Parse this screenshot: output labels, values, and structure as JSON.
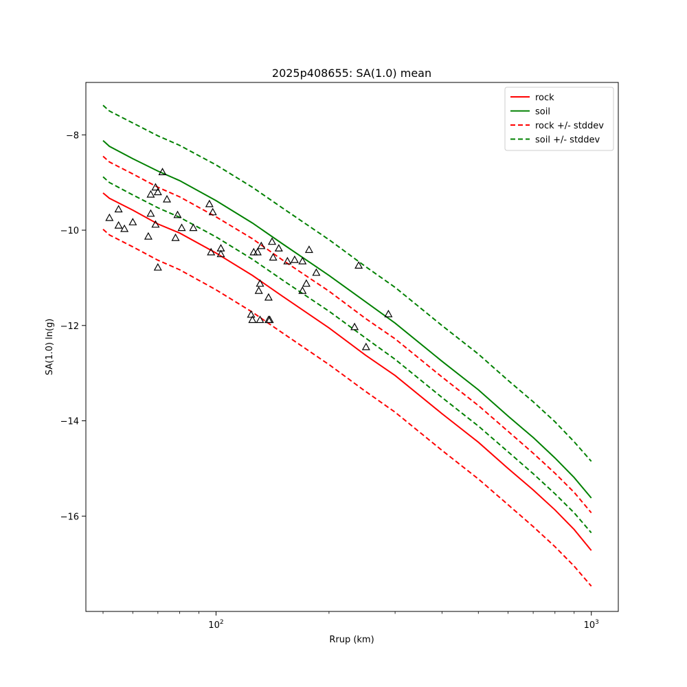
{
  "chart_data": {
    "type": "line",
    "title": "2025p408655: SA(1.0) mean",
    "xlabel": "Rrup (km)",
    "ylabel": "SA(1.0) ln(g)",
    "xscale": "log",
    "xlim": [
      45,
      1180
    ],
    "ylim": [
      -18.0,
      -6.9
    ],
    "xticks": [
      {
        "value": 100,
        "base": "10",
        "exp": "2"
      },
      {
        "value": 1000,
        "base": "10",
        "exp": "3"
      }
    ],
    "yticks": [
      -16,
      -14,
      -12,
      -10,
      -8
    ],
    "tick_labels": {
      "-16": "−16",
      "-14": "−14",
      "-12": "−12",
      "-10": "−10",
      "-8": "−8"
    },
    "legend": {
      "placement": "top-right"
    },
    "series": [
      {
        "name": "rock",
        "color": "#ff0000",
        "dash": "solid",
        "points": [
          [
            50,
            -9.22
          ],
          [
            52,
            -9.33
          ],
          [
            60,
            -9.58
          ],
          [
            70,
            -9.87
          ],
          [
            80,
            -10.06
          ],
          [
            100,
            -10.48
          ],
          [
            125,
            -10.95
          ],
          [
            150,
            -11.38
          ],
          [
            200,
            -12.05
          ],
          [
            250,
            -12.62
          ],
          [
            300,
            -13.05
          ],
          [
            400,
            -13.85
          ],
          [
            500,
            -14.45
          ],
          [
            600,
            -15.0
          ],
          [
            700,
            -15.45
          ],
          [
            800,
            -15.87
          ],
          [
            900,
            -16.28
          ],
          [
            1000,
            -16.72
          ]
        ]
      },
      {
        "name": "soil",
        "color": "#008000",
        "dash": "solid",
        "points": [
          [
            50,
            -8.12
          ],
          [
            52,
            -8.24
          ],
          [
            60,
            -8.5
          ],
          [
            70,
            -8.76
          ],
          [
            80,
            -8.96
          ],
          [
            100,
            -9.38
          ],
          [
            125,
            -9.85
          ],
          [
            150,
            -10.28
          ],
          [
            200,
            -10.95
          ],
          [
            250,
            -11.5
          ],
          [
            300,
            -11.95
          ],
          [
            400,
            -12.75
          ],
          [
            500,
            -13.35
          ],
          [
            600,
            -13.9
          ],
          [
            700,
            -14.35
          ],
          [
            800,
            -14.78
          ],
          [
            900,
            -15.19
          ],
          [
            1000,
            -15.62
          ]
        ]
      },
      {
        "name": "rock +/- stddev",
        "color": "#ff0000",
        "dash": "dashed",
        "points": [
          [
            50,
            -8.45
          ],
          [
            52,
            -8.57
          ],
          [
            60,
            -8.82
          ],
          [
            70,
            -9.1
          ],
          [
            80,
            -9.3
          ],
          [
            100,
            -9.72
          ],
          [
            125,
            -10.18
          ],
          [
            150,
            -10.62
          ],
          [
            200,
            -11.28
          ],
          [
            250,
            -11.85
          ],
          [
            300,
            -12.28
          ],
          [
            400,
            -13.08
          ],
          [
            500,
            -13.68
          ],
          [
            600,
            -14.22
          ],
          [
            700,
            -14.68
          ],
          [
            800,
            -15.1
          ],
          [
            900,
            -15.5
          ],
          [
            1000,
            -15.93
          ]
        ]
      },
      {
        "name": "",
        "color": "#ff0000",
        "dash": "dashed",
        "points": [
          [
            50,
            -9.98
          ],
          [
            52,
            -10.1
          ],
          [
            60,
            -10.35
          ],
          [
            70,
            -10.63
          ],
          [
            80,
            -10.83
          ],
          [
            100,
            -11.25
          ],
          [
            125,
            -11.72
          ],
          [
            150,
            -12.15
          ],
          [
            200,
            -12.82
          ],
          [
            250,
            -13.38
          ],
          [
            300,
            -13.82
          ],
          [
            400,
            -14.62
          ],
          [
            500,
            -15.22
          ],
          [
            600,
            -15.76
          ],
          [
            700,
            -16.22
          ],
          [
            800,
            -16.64
          ],
          [
            900,
            -17.05
          ],
          [
            1000,
            -17.47
          ]
        ]
      },
      {
        "name": "soil +/- stddev",
        "color": "#008000",
        "dash": "dashed",
        "points": [
          [
            50,
            -7.38
          ],
          [
            52,
            -7.5
          ],
          [
            60,
            -7.75
          ],
          [
            70,
            -8.02
          ],
          [
            80,
            -8.22
          ],
          [
            100,
            -8.63
          ],
          [
            125,
            -9.1
          ],
          [
            150,
            -9.53
          ],
          [
            200,
            -10.2
          ],
          [
            250,
            -10.76
          ],
          [
            300,
            -11.2
          ],
          [
            400,
            -12.0
          ],
          [
            500,
            -12.6
          ],
          [
            600,
            -13.15
          ],
          [
            700,
            -13.6
          ],
          [
            800,
            -14.02
          ],
          [
            900,
            -14.44
          ],
          [
            1000,
            -14.85
          ]
        ]
      },
      {
        "name": "",
        "color": "#008000",
        "dash": "dashed",
        "points": [
          [
            50,
            -8.88
          ],
          [
            52,
            -9.0
          ],
          [
            60,
            -9.26
          ],
          [
            70,
            -9.53
          ],
          [
            80,
            -9.73
          ],
          [
            100,
            -10.14
          ],
          [
            125,
            -10.61
          ],
          [
            150,
            -11.04
          ],
          [
            200,
            -11.7
          ],
          [
            250,
            -12.26
          ],
          [
            300,
            -12.71
          ],
          [
            400,
            -13.51
          ],
          [
            500,
            -14.11
          ],
          [
            600,
            -14.65
          ],
          [
            700,
            -15.11
          ],
          [
            800,
            -15.53
          ],
          [
            900,
            -15.93
          ],
          [
            1000,
            -16.35
          ]
        ]
      }
    ],
    "observations": {
      "marker": "triangle",
      "points": [
        [
          52,
          -9.74
        ],
        [
          55,
          -9.56
        ],
        [
          55,
          -9.9
        ],
        [
          57,
          -9.97
        ],
        [
          60,
          -9.83
        ],
        [
          66,
          -10.13
        ],
        [
          67,
          -9.25
        ],
        [
          67,
          -9.65
        ],
        [
          69,
          -9.1
        ],
        [
          70,
          -9.2
        ],
        [
          69,
          -9.88
        ],
        [
          70,
          -10.78
        ],
        [
          72,
          -8.78
        ],
        [
          74,
          -9.35
        ],
        [
          78,
          -10.16
        ],
        [
          79,
          -9.68
        ],
        [
          81,
          -9.95
        ],
        [
          87,
          -9.95
        ],
        [
          96,
          -9.45
        ],
        [
          97,
          -10.46
        ],
        [
          98,
          -9.62
        ],
        [
          103,
          -10.38
        ],
        [
          103,
          -10.5
        ],
        [
          124,
          -11.77
        ],
        [
          125,
          -11.88
        ],
        [
          126,
          -10.46
        ],
        [
          129,
          -10.46
        ],
        [
          130,
          -11.27
        ],
        [
          131,
          -11.12
        ],
        [
          131,
          -11.88
        ],
        [
          132,
          -10.33
        ],
        [
          138,
          -11.41
        ],
        [
          138,
          -11.88
        ],
        [
          139,
          -11.88
        ],
        [
          141,
          -10.24
        ],
        [
          142,
          -10.57
        ],
        [
          147,
          -10.38
        ],
        [
          155,
          -10.65
        ],
        [
          162,
          -10.62
        ],
        [
          170,
          -10.65
        ],
        [
          170,
          -11.27
        ],
        [
          174,
          -11.12
        ],
        [
          177,
          -10.41
        ],
        [
          185,
          -10.89
        ],
        [
          234,
          -12.03
        ],
        [
          240,
          -10.74
        ],
        [
          251,
          -12.45
        ],
        [
          288,
          -11.76
        ]
      ]
    }
  }
}
